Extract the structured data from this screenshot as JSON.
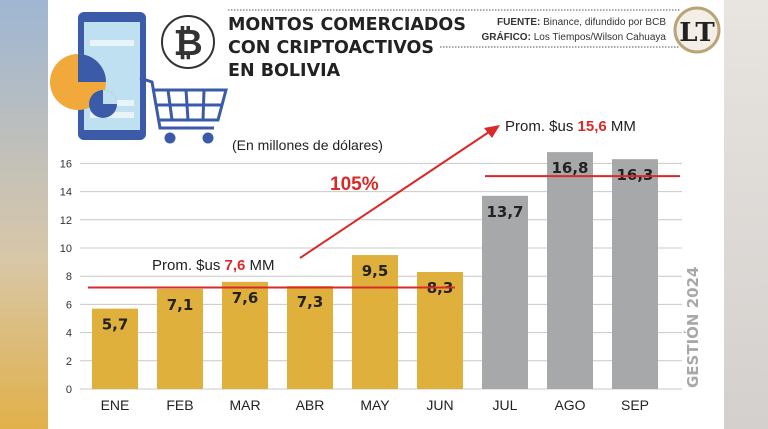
{
  "header": {
    "title_lines": [
      "MONTOS COMERCIADOS",
      "CON CRIPTOACTIVOS",
      "EN BOLIVIA"
    ],
    "source_label": "FUENTE:",
    "source_text": "Binance, difundido por BCB",
    "graphic_label": "GRÁFICO:",
    "graphic_text": "Los Tiempos/Wilson Cahuaya",
    "logo_text": "LT"
  },
  "chart_data": {
    "type": "bar",
    "title": "MONTOS COMERCIADOS CON CRIPTOACTIVOS EN BOLIVIA",
    "ylabel": "(En millones de dólares)",
    "side_label": "GESTIÓN 2024",
    "categories": [
      "ENE",
      "FEB",
      "MAR",
      "ABR",
      "MAY",
      "JUN",
      "JUL",
      "AGO",
      "SEP"
    ],
    "values": [
      5.7,
      7.1,
      7.6,
      7.3,
      9.5,
      8.3,
      13.7,
      16.8,
      16.3
    ],
    "value_labels": [
      "5,7",
      "7,1",
      "7,6",
      "7,3",
      "9,5",
      "8,3",
      "13,7",
      "16,8",
      "16,3"
    ],
    "ylim": [
      0,
      16
    ],
    "yticks": [
      0,
      2,
      4,
      6,
      8,
      10,
      12,
      14,
      16
    ],
    "grid": true,
    "colors": {
      "first_half": "#e0b03c",
      "second_half": "#a7a8aa",
      "average_line": "#d92a2a",
      "highlight": "#d92a2a"
    },
    "annotations": {
      "avg1": {
        "prefix": "Prom. $us ",
        "value": "7,6",
        "suffix": " MM",
        "y": 7.2
      },
      "avg2": {
        "prefix": "Prom. $us ",
        "value": "15,6",
        "suffix": " MM",
        "y": 15.1
      },
      "growth": "105%"
    }
  }
}
